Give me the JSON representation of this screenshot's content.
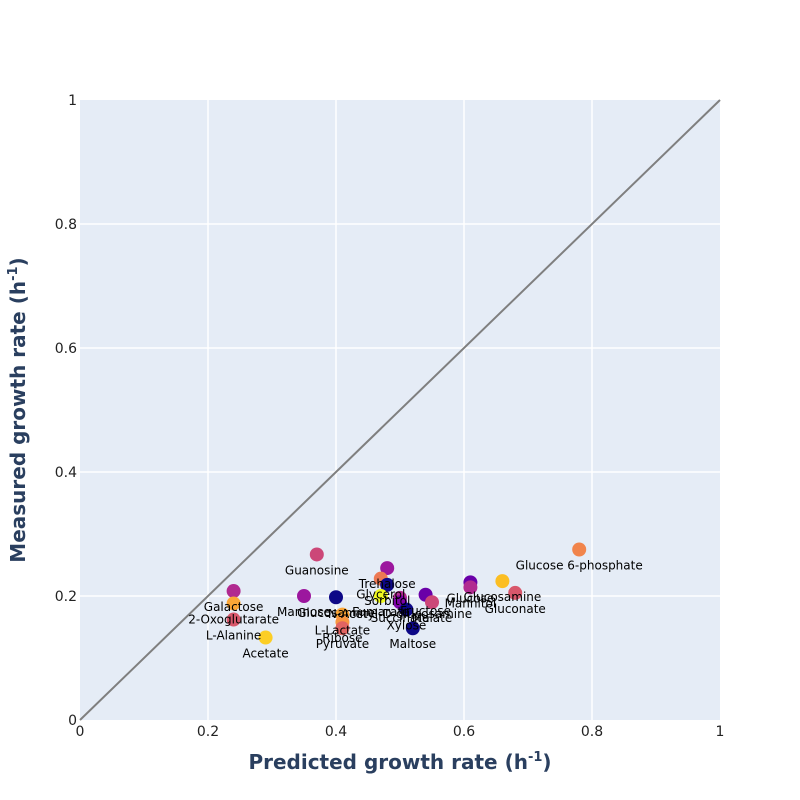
{
  "chart_data": {
    "type": "scatter",
    "title": "",
    "xlabel": "Predicted growth rate",
    "ylabel": "Measured growth rate",
    "unit_base": "h",
    "unit_exp": "-1",
    "xlim": [
      0,
      1
    ],
    "ylim": [
      0,
      1
    ],
    "x_ticks": [
      "0",
      "0.2",
      "0.4",
      "0.6",
      "0.8",
      "1"
    ],
    "y_ticks": [
      "0",
      "0.2",
      "0.4",
      "0.6",
      "0.8",
      "1"
    ],
    "grid": true,
    "reference_line": "y = x",
    "background_color": "#e5ecf6",
    "points": [
      {
        "label": "Glucose 6-phosphate",
        "x": 0.78,
        "y": 0.275,
        "color": "#f1844b"
      },
      {
        "label": "Guanosine",
        "x": 0.37,
        "y": 0.267,
        "color": "#cc4778"
      },
      {
        "label": "Trehalose",
        "x": 0.48,
        "y": 0.245,
        "color": "#9c179e"
      },
      {
        "label": "Glycerol",
        "x": 0.47,
        "y": 0.228,
        "color": "#ed7953"
      },
      {
        "label": "Sorbitol",
        "x": 0.48,
        "y": 0.218,
        "color": "#0d0887"
      },
      {
        "label": "N-Acetyl-D-glucosamine",
        "x": 0.5,
        "y": 0.197,
        "color": "#b12a90"
      },
      {
        "label": "Glucose",
        "x": 0.61,
        "y": 0.222,
        "color": "#6a00a8"
      },
      {
        "label": "Mannitol",
        "x": 0.61,
        "y": 0.214,
        "color": "#b12a90"
      },
      {
        "label": "Glucosamine",
        "x": 0.66,
        "y": 0.224,
        "color": "#fbbe23"
      },
      {
        "label": "Gluconate",
        "x": 0.68,
        "y": 0.205,
        "color": "#d8576b"
      },
      {
        "label": "Galactose",
        "x": 0.24,
        "y": 0.208,
        "color": "#b12a90"
      },
      {
        "label": "2-Oxoglutarate",
        "x": 0.24,
        "y": 0.188,
        "color": "#fca636"
      },
      {
        "label": "L-Alanine",
        "x": 0.24,
        "y": 0.162,
        "color": "#d8576b"
      },
      {
        "label": "Mannose",
        "x": 0.35,
        "y": 0.2,
        "color": "#9c179e"
      },
      {
        "label": "Glucosamine",
        "x": 0.4,
        "y": 0.198,
        "color": "#0d0887"
      },
      {
        "label": "Fumarate",
        "x": 0.47,
        "y": 0.2,
        "color": "#f0f921"
      },
      {
        "label": "Succinate",
        "x": 0.5,
        "y": 0.19,
        "color": "#7e03a8"
      },
      {
        "label": "Fructose",
        "x": 0.54,
        "y": 0.202,
        "color": "#6a00a8"
      },
      {
        "label": "Malate",
        "x": 0.55,
        "y": 0.19,
        "color": "#cc4778"
      },
      {
        "label": "Xylose",
        "x": 0.51,
        "y": 0.178,
        "color": "#0d0887"
      },
      {
        "label": "L-Lactate",
        "x": 0.41,
        "y": 0.17,
        "color": "#fca636"
      },
      {
        "label": "Ribose",
        "x": 0.41,
        "y": 0.158,
        "color": "#f89540"
      },
      {
        "label": "Pyruvate",
        "x": 0.41,
        "y": 0.148,
        "color": "#e16462"
      },
      {
        "label": "Maltose",
        "x": 0.52,
        "y": 0.148,
        "color": "#0d0887"
      },
      {
        "label": "Acetate",
        "x": 0.29,
        "y": 0.133,
        "color": "#fcce25"
      }
    ]
  }
}
